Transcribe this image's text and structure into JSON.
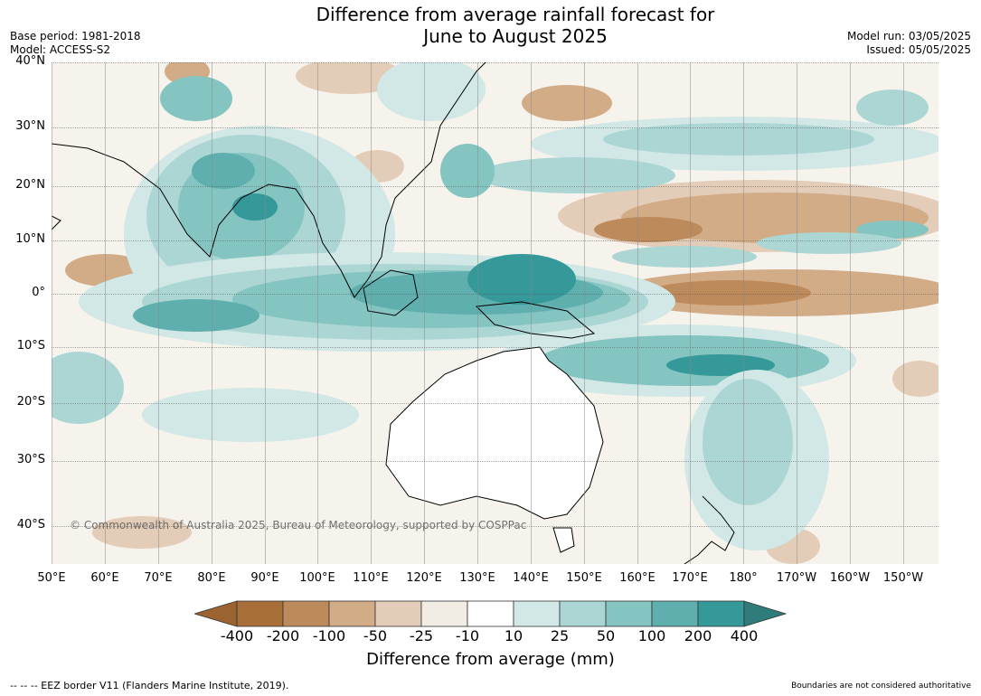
{
  "title_line1": "Difference from average rainfall forecast for",
  "title_line2": "June to August 2025",
  "meta_left": [
    "Base period: 1981-2018",
    "Model: ACCESS-S2"
  ],
  "meta_right": [
    "Model run: 03/05/2025",
    "Issued: 05/05/2025"
  ],
  "lat_labels": [
    "40°N",
    "30°N",
    "20°N",
    "10°N",
    "0°",
    "10°S",
    "20°S",
    "30°S",
    "40°S"
  ],
  "lon_labels": [
    "50°E",
    "60°E",
    "70°E",
    "80°E",
    "90°E",
    "100°E",
    "110°E",
    "120°E",
    "130°E",
    "140°E",
    "150°E",
    "160°E",
    "170°E",
    "180°",
    "170°W",
    "160°W",
    "150°W"
  ],
  "copyright": "© Commonwealth of Australia 2025, Bureau of Meteorology, supported by COSPPac",
  "colorbar": {
    "ticks": [
      "-400",
      "-200",
      "-100",
      "-50",
      "-25",
      "-10",
      "10",
      "25",
      "50",
      "100",
      "200",
      "400"
    ],
    "colors": [
      "#a87038",
      "#bd8a5c",
      "#d2ac86",
      "#e3cdb8",
      "#f1ece4",
      "#ffffff",
      "#d1e8e6",
      "#acd6d4",
      "#84c4c1",
      "#5eafad",
      "#35999a"
    ],
    "under_color": "#9a6330",
    "over_color": "#2f7d7b",
    "label": "Difference from average (mm)"
  },
  "footer_left": "--  --  -- EEZ border V11 (Flanders Marine Institute, 2019).",
  "footer_right": "Boundaries are not considered authoritative"
}
